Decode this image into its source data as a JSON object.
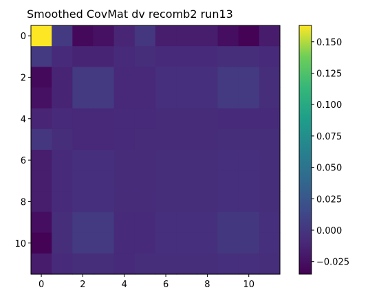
{
  "chart_data": {
    "type": "heatmap",
    "title": "Smoothed CovMat dv recomb2 run13",
    "xlabel": "",
    "ylabel": "",
    "colormap": "viridis",
    "grid": false,
    "x_ticks": [
      "0",
      "2",
      "4",
      "6",
      "8",
      "10"
    ],
    "y_ticks": [
      "0",
      "2",
      "4",
      "6",
      "8",
      "10"
    ],
    "colorbar": {
      "vmin": -0.035,
      "vmax": 0.163,
      "ticks": [
        -0.025,
        0,
        0.025,
        0.05,
        0.075,
        0.1,
        0.125,
        0.15
      ],
      "tick_labels": [
        "−0.025",
        "0.000",
        "0.025",
        "0.050",
        "0.075",
        "0.100",
        "0.125",
        "0.150"
      ]
    },
    "matrix": [
      [
        0.163,
        0.003,
        -0.03,
        -0.025,
        -0.012,
        0.0,
        -0.017,
        -0.017,
        -0.017,
        -0.027,
        -0.034,
        -0.018
      ],
      [
        0.003,
        -0.008,
        -0.013,
        -0.013,
        -0.009,
        -0.006,
        -0.008,
        -0.008,
        -0.008,
        -0.006,
        -0.006,
        -0.009
      ],
      [
        -0.03,
        -0.013,
        0.003,
        0.003,
        -0.01,
        -0.01,
        -0.005,
        -0.005,
        -0.005,
        0.003,
        0.003,
        -0.006
      ],
      [
        -0.025,
        -0.013,
        0.003,
        0.003,
        -0.01,
        -0.01,
        -0.005,
        -0.005,
        -0.005,
        0.003,
        0.003,
        -0.006
      ],
      [
        -0.012,
        -0.009,
        -0.01,
        -0.01,
        -0.009,
        -0.009,
        -0.007,
        -0.007,
        -0.007,
        -0.008,
        -0.008,
        -0.008
      ],
      [
        0.0,
        -0.006,
        -0.01,
        -0.01,
        -0.009,
        -0.007,
        -0.007,
        -0.007,
        -0.007,
        -0.006,
        -0.006,
        -0.006
      ],
      [
        -0.017,
        -0.008,
        -0.005,
        -0.005,
        -0.007,
        -0.007,
        -0.006,
        -0.006,
        -0.006,
        -0.005,
        -0.005,
        -0.006
      ],
      [
        -0.017,
        -0.008,
        -0.005,
        -0.005,
        -0.007,
        -0.007,
        -0.006,
        -0.006,
        -0.006,
        -0.005,
        -0.005,
        -0.006
      ],
      [
        -0.017,
        -0.008,
        -0.005,
        -0.005,
        -0.007,
        -0.007,
        -0.006,
        -0.006,
        -0.006,
        -0.005,
        -0.005,
        -0.006
      ],
      [
        -0.027,
        -0.006,
        0.003,
        0.003,
        -0.008,
        -0.008,
        -0.005,
        -0.005,
        -0.005,
        0.002,
        0.002,
        -0.005
      ],
      [
        -0.034,
        -0.006,
        0.003,
        0.003,
        -0.008,
        -0.008,
        -0.005,
        -0.005,
        -0.005,
        0.002,
        0.002,
        -0.005
      ],
      [
        -0.018,
        -0.009,
        -0.006,
        -0.006,
        -0.008,
        -0.006,
        -0.006,
        -0.006,
        -0.006,
        -0.005,
        -0.005,
        -0.006
      ]
    ]
  }
}
